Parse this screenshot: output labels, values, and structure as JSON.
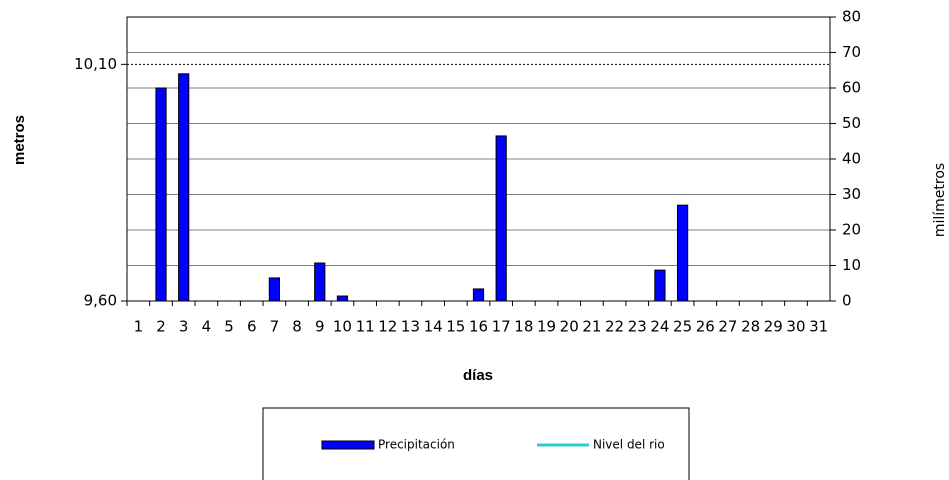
{
  "chart_data": {
    "type": "bar",
    "x_label": "días",
    "y_label": "metros",
    "y2_label": "milímetros",
    "categories": [
      "1",
      "2",
      "3",
      "4",
      "5",
      "6",
      "7",
      "8",
      "9",
      "10",
      "11",
      "12",
      "13",
      "14",
      "15",
      "16",
      "17",
      "18",
      "19",
      "20",
      "21",
      "22",
      "23",
      "24",
      "25",
      "26",
      "27",
      "28",
      "29",
      "30",
      "31"
    ],
    "series": [
      {
        "name": "Precipitación",
        "color": "#0000ff",
        "axis": "y2",
        "values": [
          0,
          60,
          64,
          0,
          0,
          0,
          6.5,
          0,
          10.7,
          1.4,
          0,
          0,
          0,
          0,
          0,
          3.4,
          46.5,
          0,
          0,
          0,
          0,
          0,
          0,
          8.7,
          27,
          0,
          0,
          0,
          0,
          0,
          0
        ]
      },
      {
        "name": "Nivel del rio",
        "color": "#33cccc",
        "values": [
          null,
          null,
          null,
          null,
          null,
          null,
          null,
          null,
          null,
          null,
          null,
          null,
          null,
          null,
          null,
          null,
          null,
          null,
          null,
          null,
          null,
          null,
          null,
          null,
          null,
          null,
          null,
          null,
          null,
          null,
          null
        ]
      }
    ],
    "ylim": [
      9.6,
      10.2
    ],
    "yticks": [
      {
        "value": 9.6,
        "label": "9,60"
      },
      {
        "value": 10.1,
        "label": "10,10"
      }
    ],
    "y2lim": [
      0,
      80
    ],
    "y2ticks": [
      0,
      10,
      20,
      30,
      40,
      50,
      60,
      70,
      80
    ],
    "grid": true
  }
}
